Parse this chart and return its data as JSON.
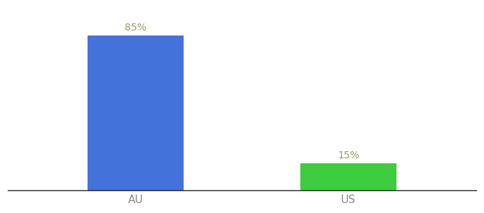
{
  "categories": [
    "AU",
    "US"
  ],
  "values": [
    85,
    15
  ],
  "bar_colors": [
    "#4472db",
    "#3dcc3d"
  ],
  "label_texts": [
    "85%",
    "15%"
  ],
  "label_color": "#999966",
  "background_color": "#ffffff",
  "bar_width": 0.45,
  "figsize": [
    6.8,
    3.0
  ],
  "dpi": 100,
  "tick_fontsize": 11,
  "label_fontsize": 10,
  "ylim": [
    0,
    100
  ],
  "xlim": [
    -0.6,
    1.6
  ],
  "x_positions": [
    0,
    1
  ]
}
